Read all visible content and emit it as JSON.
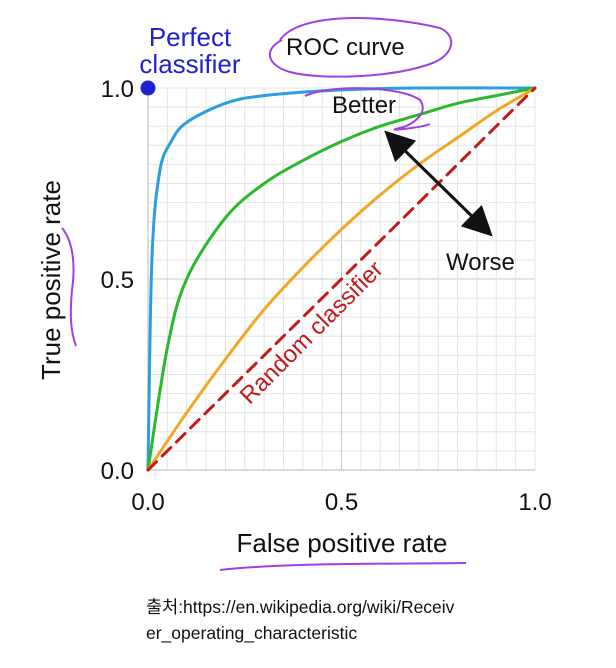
{
  "chart_data": {
    "type": "line",
    "xlabel": "False positive rate",
    "ylabel": "True positive rate",
    "xlim": [
      0,
      1
    ],
    "ylim": [
      0,
      1
    ],
    "x_ticks": [
      "0.0",
      "0.5",
      "1.0"
    ],
    "y_ticks": [
      "0.0",
      "0.5",
      "1.0"
    ],
    "grid": true,
    "series": [
      {
        "color": "#2b9ee0",
        "style": "solid",
        "x": [
          0,
          0.01,
          0.03,
          0.06,
          0.1,
          0.2,
          0.3,
          0.5,
          0.7,
          1.0
        ],
        "y": [
          0,
          0.55,
          0.78,
          0.86,
          0.91,
          0.96,
          0.98,
          0.995,
          1.0,
          1.0
        ]
      },
      {
        "color": "#2cb82c",
        "style": "solid",
        "x": [
          0,
          0.05,
          0.1,
          0.2,
          0.3,
          0.4,
          0.5,
          0.6,
          0.7,
          0.8,
          0.9,
          1.0
        ],
        "y": [
          0,
          0.32,
          0.5,
          0.66,
          0.75,
          0.81,
          0.86,
          0.9,
          0.93,
          0.96,
          0.98,
          1.0
        ]
      },
      {
        "color": "#f5a623",
        "style": "solid",
        "x": [
          0,
          0.1,
          0.2,
          0.3,
          0.4,
          0.5,
          0.6,
          0.7,
          0.8,
          0.9,
          1.0
        ],
        "y": [
          0,
          0.15,
          0.29,
          0.42,
          0.53,
          0.63,
          0.72,
          0.8,
          0.87,
          0.94,
          1.0
        ]
      },
      {
        "name": "Random classifier",
        "color": "#c41a1a",
        "style": "dashed",
        "x": [
          0,
          1
        ],
        "y": [
          0,
          1
        ]
      }
    ],
    "points": [
      {
        "name": "Perfect classifier",
        "x": 0,
        "y": 1,
        "color": "#1f1fd6"
      }
    ],
    "annotations": {
      "perfect_line1": "Perfect",
      "perfect_line2": "classifier",
      "roc_curve": "ROC curve",
      "better": "Better",
      "worse": "Worse",
      "random": "Random classifier"
    }
  },
  "source_line1": "출처:https://en.wikipedia.org/wiki/Receiv",
  "source_line2": "er_operating_characteristic",
  "colors": {
    "highlight": "#a040e0"
  }
}
